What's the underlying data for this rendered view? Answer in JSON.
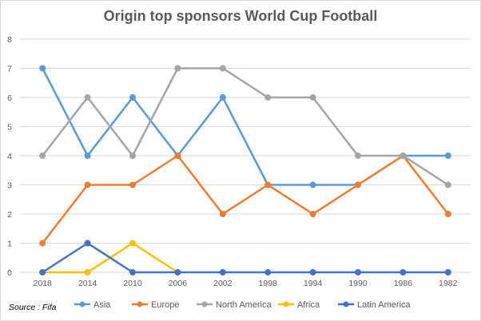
{
  "chart_data": {
    "type": "line",
    "title": "Origin top sponsors World Cup Football",
    "source": "Source : Fifa",
    "categories": [
      "2018",
      "2014",
      "2010",
      "2006",
      "2002",
      "1998",
      "1994",
      "1990",
      "1986",
      "1982"
    ],
    "ylim": [
      0,
      8
    ],
    "yticks": [
      0,
      1,
      2,
      3,
      4,
      5,
      6,
      7,
      8
    ],
    "grid": true,
    "legend_position": "bottom",
    "series": [
      {
        "name": "Asia",
        "color": "#5b9bd5",
        "values": [
          7,
          4,
          6,
          4,
          6,
          3,
          3,
          3,
          4,
          4
        ]
      },
      {
        "name": "Europe",
        "color": "#ed7d31",
        "values": [
          1,
          3,
          3,
          4,
          2,
          3,
          2,
          3,
          4,
          2
        ]
      },
      {
        "name": "North America",
        "color": "#a5a5a5",
        "values": [
          4,
          6,
          4,
          7,
          7,
          6,
          6,
          4,
          4,
          3
        ]
      },
      {
        "name": "Africa",
        "color": "#ffc000",
        "values": [
          0,
          0,
          1,
          0,
          null,
          null,
          null,
          null,
          null,
          null
        ]
      },
      {
        "name": "Latin America",
        "color": "#4472c4",
        "values": [
          0,
          1,
          0,
          0,
          0,
          0,
          0,
          0,
          0,
          0
        ]
      }
    ]
  }
}
